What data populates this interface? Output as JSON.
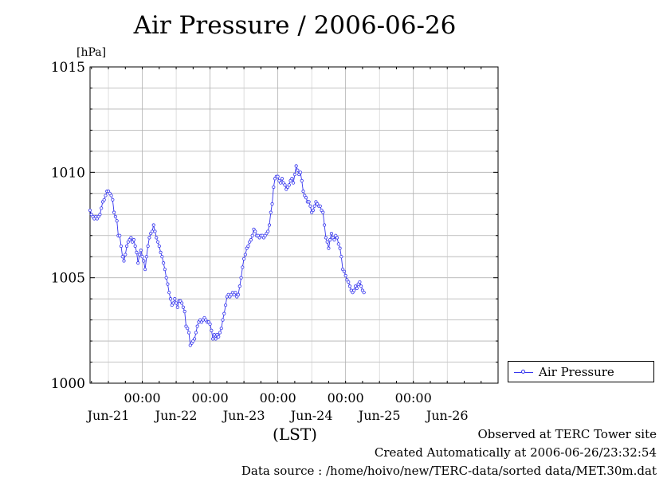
{
  "chart_data": {
    "type": "line",
    "title": "Air Pressure / 2006-06-26",
    "ylabel": "[hPa]",
    "xlabel": "(LST)",
    "ylim": [
      1000,
      1015
    ],
    "yticks": [
      1000,
      1005,
      1010,
      1015
    ],
    "xlim_hours": [
      -18.5,
      126
    ],
    "xtick_time_label": "00:00",
    "xtick_hours": [
      0,
      24,
      48,
      72,
      96
    ],
    "xdate_labels": [
      {
        "label": "Jun-21",
        "hour": -12
      },
      {
        "label": "Jun-22",
        "hour": 12
      },
      {
        "label": "Jun-23",
        "hour": 36
      },
      {
        "label": "Jun-24",
        "hour": 60
      },
      {
        "label": "Jun-25",
        "hour": 84
      },
      {
        "label": "Jun-26",
        "hour": 108
      }
    ],
    "grid": true,
    "legend_position": "bottom-right outside",
    "series": [
      {
        "name": "Air Pressure",
        "color": "#3333ee",
        "points": [
          [
            -18.5,
            1008.2
          ],
          [
            -18,
            1008.0
          ],
          [
            -17.5,
            1007.9
          ],
          [
            -17,
            1007.8
          ],
          [
            -16.5,
            1007.9
          ],
          [
            -16,
            1007.8
          ],
          [
            -15.5,
            1007.9
          ],
          [
            -15,
            1008.0
          ],
          [
            -14.5,
            1008.3
          ],
          [
            -14,
            1008.6
          ],
          [
            -13.5,
            1008.7
          ],
          [
            -13,
            1008.9
          ],
          [
            -12.5,
            1009.1
          ],
          [
            -12,
            1009.1
          ],
          [
            -11.5,
            1009.0
          ],
          [
            -11,
            1008.9
          ],
          [
            -10.5,
            1008.7
          ],
          [
            -10,
            1008.1
          ],
          [
            -9.5,
            1007.9
          ],
          [
            -9,
            1007.7
          ],
          [
            -8.5,
            1007.0
          ],
          [
            -8,
            1007.0
          ],
          [
            -7.5,
            1006.5
          ],
          [
            -7,
            1006.0
          ],
          [
            -6.5,
            1005.8
          ],
          [
            -6,
            1006.1
          ],
          [
            -5.5,
            1006.5
          ],
          [
            -5,
            1006.7
          ],
          [
            -4.5,
            1006.8
          ],
          [
            -4,
            1006.9
          ],
          [
            -3.5,
            1006.7
          ],
          [
            -3,
            1006.8
          ],
          [
            -2.5,
            1006.5
          ],
          [
            -2,
            1006.2
          ],
          [
            -1.5,
            1005.7
          ],
          [
            -1,
            1006.1
          ],
          [
            -0.5,
            1006.3
          ],
          [
            0,
            1006.0
          ],
          [
            0.5,
            1005.8
          ],
          [
            1,
            1005.4
          ],
          [
            1.5,
            1006.0
          ],
          [
            2,
            1006.5
          ],
          [
            2.5,
            1006.9
          ],
          [
            3,
            1007.1
          ],
          [
            3.5,
            1007.2
          ],
          [
            4,
            1007.5
          ],
          [
            4.5,
            1007.2
          ],
          [
            5,
            1006.9
          ],
          [
            5.5,
            1006.7
          ],
          [
            6,
            1006.5
          ],
          [
            6.5,
            1006.2
          ],
          [
            7,
            1006.0
          ],
          [
            7.5,
            1005.7
          ],
          [
            8,
            1005.4
          ],
          [
            8.5,
            1005.0
          ],
          [
            9,
            1004.7
          ],
          [
            9.5,
            1004.3
          ],
          [
            10,
            1004.0
          ],
          [
            10.5,
            1003.7
          ],
          [
            11,
            1003.8
          ],
          [
            11.5,
            1004.0
          ],
          [
            12,
            1003.8
          ],
          [
            12.5,
            1003.6
          ],
          [
            13,
            1003.9
          ],
          [
            13.5,
            1003.9
          ],
          [
            14,
            1003.8
          ],
          [
            14.5,
            1003.6
          ],
          [
            15,
            1003.4
          ],
          [
            15.5,
            1002.7
          ],
          [
            16,
            1002.6
          ],
          [
            16.5,
            1002.4
          ],
          [
            17,
            1001.8
          ],
          [
            17.5,
            1001.9
          ],
          [
            18,
            1002.0
          ],
          [
            18.5,
            1002.1
          ],
          [
            19,
            1002.4
          ],
          [
            19.5,
            1002.7
          ],
          [
            20,
            1002.9
          ],
          [
            20.5,
            1003.0
          ],
          [
            21,
            1002.9
          ],
          [
            21.5,
            1003.0
          ],
          [
            22,
            1003.1
          ],
          [
            22.5,
            1003.0
          ],
          [
            23,
            1002.9
          ],
          [
            23.5,
            1002.9
          ],
          [
            24,
            1002.8
          ],
          [
            24.5,
            1002.5
          ],
          [
            25,
            1002.1
          ],
          [
            25.5,
            1002.3
          ],
          [
            26,
            1002.1
          ],
          [
            26.5,
            1002.3
          ],
          [
            27,
            1002.2
          ],
          [
            27.5,
            1002.4
          ],
          [
            28,
            1002.6
          ],
          [
            28.5,
            1003.0
          ],
          [
            29,
            1003.3
          ],
          [
            29.5,
            1003.7
          ],
          [
            30,
            1004.1
          ],
          [
            30.5,
            1004.2
          ],
          [
            31,
            1004.1
          ],
          [
            31.5,
            1004.2
          ],
          [
            32,
            1004.3
          ],
          [
            32.5,
            1004.2
          ],
          [
            33,
            1004.3
          ],
          [
            33.5,
            1004.1
          ],
          [
            34,
            1004.2
          ],
          [
            34.5,
            1004.6
          ],
          [
            35,
            1005.0
          ],
          [
            35.5,
            1005.5
          ],
          [
            36,
            1005.9
          ],
          [
            36.5,
            1006.1
          ],
          [
            37,
            1006.4
          ],
          [
            37.5,
            1006.5
          ],
          [
            38,
            1006.7
          ],
          [
            38.5,
            1006.8
          ],
          [
            39,
            1007.0
          ],
          [
            39.5,
            1007.3
          ],
          [
            40,
            1007.2
          ],
          [
            40.5,
            1007.0
          ],
          [
            41,
            1007.0
          ],
          [
            41.5,
            1006.9
          ],
          [
            42,
            1007.0
          ],
          [
            42.5,
            1007.0
          ],
          [
            43,
            1006.9
          ],
          [
            43.5,
            1007.0
          ],
          [
            44,
            1007.1
          ],
          [
            44.5,
            1007.2
          ],
          [
            45,
            1007.5
          ],
          [
            45.5,
            1008.1
          ],
          [
            46,
            1008.5
          ],
          [
            46.5,
            1009.3
          ],
          [
            47,
            1009.7
          ],
          [
            47.5,
            1009.8
          ],
          [
            48,
            1009.8
          ],
          [
            48.5,
            1009.6
          ],
          [
            49,
            1009.5
          ],
          [
            49.5,
            1009.7
          ],
          [
            50,
            1009.5
          ],
          [
            50.5,
            1009.4
          ],
          [
            51,
            1009.2
          ],
          [
            51.5,
            1009.3
          ],
          [
            52,
            1009.4
          ],
          [
            52.5,
            1009.6
          ],
          [
            53,
            1009.7
          ],
          [
            53.5,
            1009.5
          ],
          [
            54,
            1009.9
          ],
          [
            54.5,
            1010.3
          ],
          [
            55,
            1010.1
          ],
          [
            55.5,
            1009.9
          ],
          [
            56,
            1010.0
          ],
          [
            56.5,
            1009.6
          ],
          [
            57,
            1009.1
          ],
          [
            57.5,
            1008.9
          ],
          [
            58,
            1008.8
          ],
          [
            58.5,
            1008.6
          ],
          [
            59,
            1008.6
          ],
          [
            59.5,
            1008.4
          ],
          [
            60,
            1008.1
          ],
          [
            60.5,
            1008.2
          ],
          [
            61,
            1008.4
          ],
          [
            61.5,
            1008.6
          ],
          [
            62,
            1008.5
          ],
          [
            62.5,
            1008.4
          ],
          [
            63,
            1008.4
          ],
          [
            63.5,
            1008.2
          ],
          [
            64,
            1008.1
          ],
          [
            64.5,
            1007.5
          ],
          [
            65,
            1006.9
          ],
          [
            65.5,
            1006.7
          ],
          [
            66,
            1006.4
          ],
          [
            66.5,
            1006.8
          ],
          [
            67,
            1007.1
          ],
          [
            67.5,
            1006.9
          ],
          [
            68,
            1006.8
          ],
          [
            68.5,
            1007.0
          ],
          [
            69,
            1006.9
          ],
          [
            69.5,
            1006.6
          ],
          [
            70,
            1006.4
          ],
          [
            70.5,
            1006.0
          ],
          [
            71,
            1005.4
          ],
          [
            71.5,
            1005.3
          ],
          [
            72,
            1005.1
          ],
          [
            72.5,
            1004.9
          ],
          [
            73,
            1004.8
          ],
          [
            73.5,
            1004.6
          ],
          [
            74,
            1004.4
          ],
          [
            74.5,
            1004.3
          ],
          [
            75,
            1004.4
          ],
          [
            75.5,
            1004.6
          ],
          [
            76,
            1004.5
          ],
          [
            76.5,
            1004.7
          ],
          [
            77,
            1004.8
          ],
          [
            77.5,
            1004.6
          ],
          [
            78,
            1004.4
          ],
          [
            78.5,
            1004.3
          ]
        ]
      }
    ]
  },
  "legend_label": "Air Pressure",
  "footer": {
    "line1": "Observed at TERC Tower site",
    "line2": "Created Automatically at 2006-06-26/23:32:54",
    "line3": "Data source : /home/hoivo/new/TERC-data/sorted  data/MET.30m.dat"
  }
}
